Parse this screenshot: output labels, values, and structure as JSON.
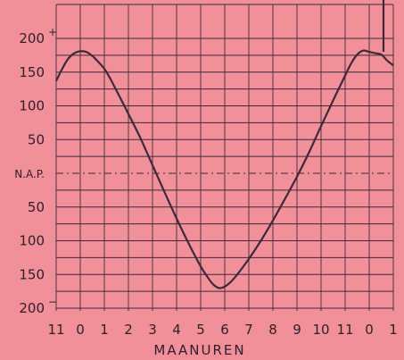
{
  "chart_data": {
    "type": "line",
    "title": "",
    "xlabel": "MAANUREN",
    "ylabel": "",
    "x_ticks": [
      "11",
      "0",
      "1",
      "2",
      "3",
      "4",
      "5",
      "6",
      "7",
      "8",
      "9",
      "10",
      "11",
      "0",
      "1"
    ],
    "y_ticks": [
      {
        "value": 200,
        "label": "200",
        "sign": "+"
      },
      {
        "value": 150,
        "label": "150",
        "sign": ""
      },
      {
        "value": 100,
        "label": "100",
        "sign": ""
      },
      {
        "value": 50,
        "label": "50",
        "sign": ""
      },
      {
        "value": 0,
        "label": "N.A.P.",
        "sign": ""
      },
      {
        "value": -50,
        "label": "50",
        "sign": ""
      },
      {
        "value": -100,
        "label": "100",
        "sign": ""
      },
      {
        "value": -150,
        "label": "150",
        "sign": ""
      },
      {
        "value": -200,
        "label": "200",
        "sign": "−"
      }
    ],
    "ylim": [
      -200,
      200
    ],
    "xlim": [
      -1,
      13
    ],
    "grid": true,
    "line_color": "#3a2a3a",
    "grid_color": "#3a2a3a",
    "background": "#f2909a",
    "series": [
      {
        "x": [
          -1.0,
          -0.75,
          -0.5,
          -0.25,
          0.0,
          0.25,
          0.5,
          0.75,
          1.0,
          1.25,
          1.5,
          2.0,
          2.5,
          3.0,
          3.5,
          4.0,
          4.5,
          5.0,
          5.25,
          5.5,
          5.75,
          6.0,
          6.25,
          6.5,
          7.0,
          7.5,
          8.0,
          8.5,
          9.0,
          9.5,
          10.0,
          10.5,
          11.0,
          11.25,
          11.5,
          11.75,
          12.0,
          12.25,
          12.5,
          12.75,
          13.0
        ],
        "y": [
          137,
          155,
          170,
          178,
          181,
          180,
          174,
          165,
          155,
          140,
          123,
          88,
          52,
          12,
          -28,
          -67,
          -104,
          -138,
          -152,
          -164,
          -170,
          -168,
          -161,
          -151,
          -127,
          -100,
          -70,
          -38,
          -5,
          31,
          70,
          108,
          145,
          163,
          176,
          182,
          180,
          178,
          176,
          167,
          160
        ]
      }
    ]
  }
}
